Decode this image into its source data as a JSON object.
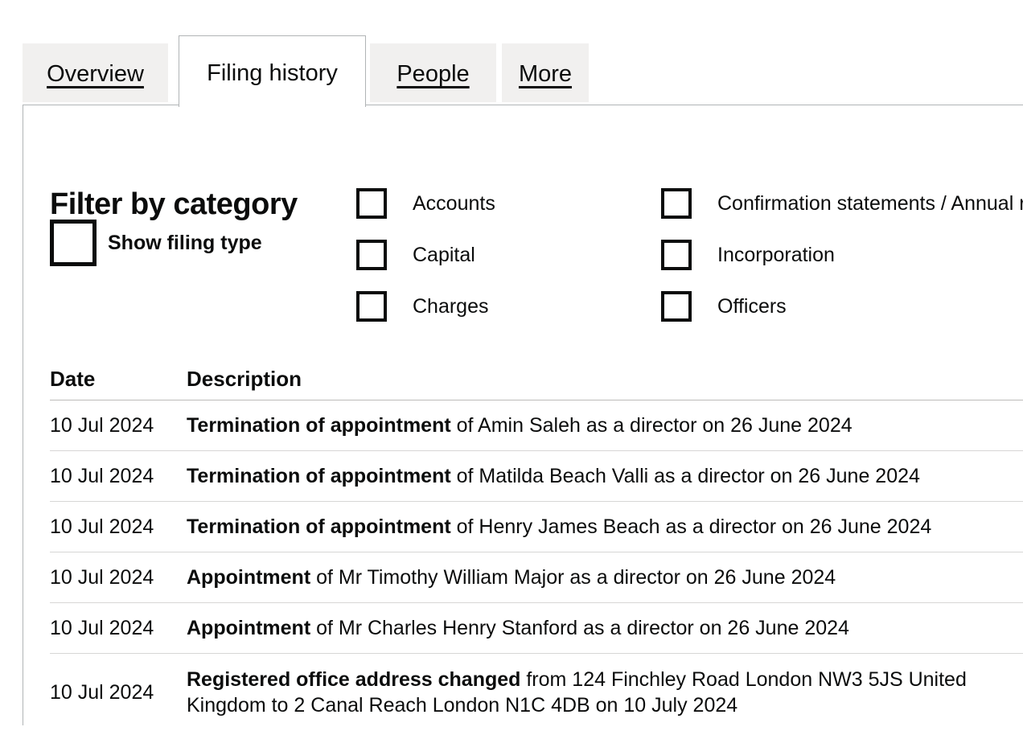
{
  "tabs": [
    {
      "label": "Overview",
      "active": false
    },
    {
      "label": "Filing history",
      "active": true
    },
    {
      "label": "People",
      "active": false
    },
    {
      "label": "More",
      "active": false
    }
  ],
  "filter": {
    "heading": "Filter by category",
    "show_filing_type_label": "Show filing type",
    "categories_col1": [
      {
        "label": "Accounts",
        "checked": false
      },
      {
        "label": "Capital",
        "checked": false
      },
      {
        "label": "Charges",
        "checked": false
      }
    ],
    "categories_col2": [
      {
        "label": "Confirmation statements / Annual returns",
        "checked": false
      },
      {
        "label": "Incorporation",
        "checked": false
      },
      {
        "label": "Officers",
        "checked": false
      }
    ]
  },
  "table": {
    "columns": [
      "Date",
      "Description"
    ],
    "rows": [
      {
        "date": "10 Jul 2024",
        "bold": "Termination of appointment",
        "rest": " of Amin Saleh as a director on 26 June 2024"
      },
      {
        "date": "10 Jul 2024",
        "bold": "Termination of appointment",
        "rest": " of Matilda Beach Valli as a director on 26 June 2024"
      },
      {
        "date": "10 Jul 2024",
        "bold": "Termination of appointment",
        "rest": " of Henry James Beach as a director on 26 June 2024"
      },
      {
        "date": "10 Jul 2024",
        "bold": "Appointment",
        "rest": " of Mr Timothy William Major as a director on 26 June 2024"
      },
      {
        "date": "10 Jul 2024",
        "bold": "Appointment",
        "rest": " of Mr Charles Henry Stanford as a director on 26 June 2024"
      },
      {
        "date": "10 Jul 2024",
        "bold": "Registered office address changed",
        "rest": " from 124 Finchley Road London NW3 5JS United Kingdom to 2 Canal Reach London N1C 4DB on 10 July 2024"
      }
    ]
  },
  "colors": {
    "text": "#0b0c0c",
    "tab_background": "#f1f0ef",
    "panel_border": "#b1b4b6",
    "row_divider": "#d7d6d5"
  }
}
